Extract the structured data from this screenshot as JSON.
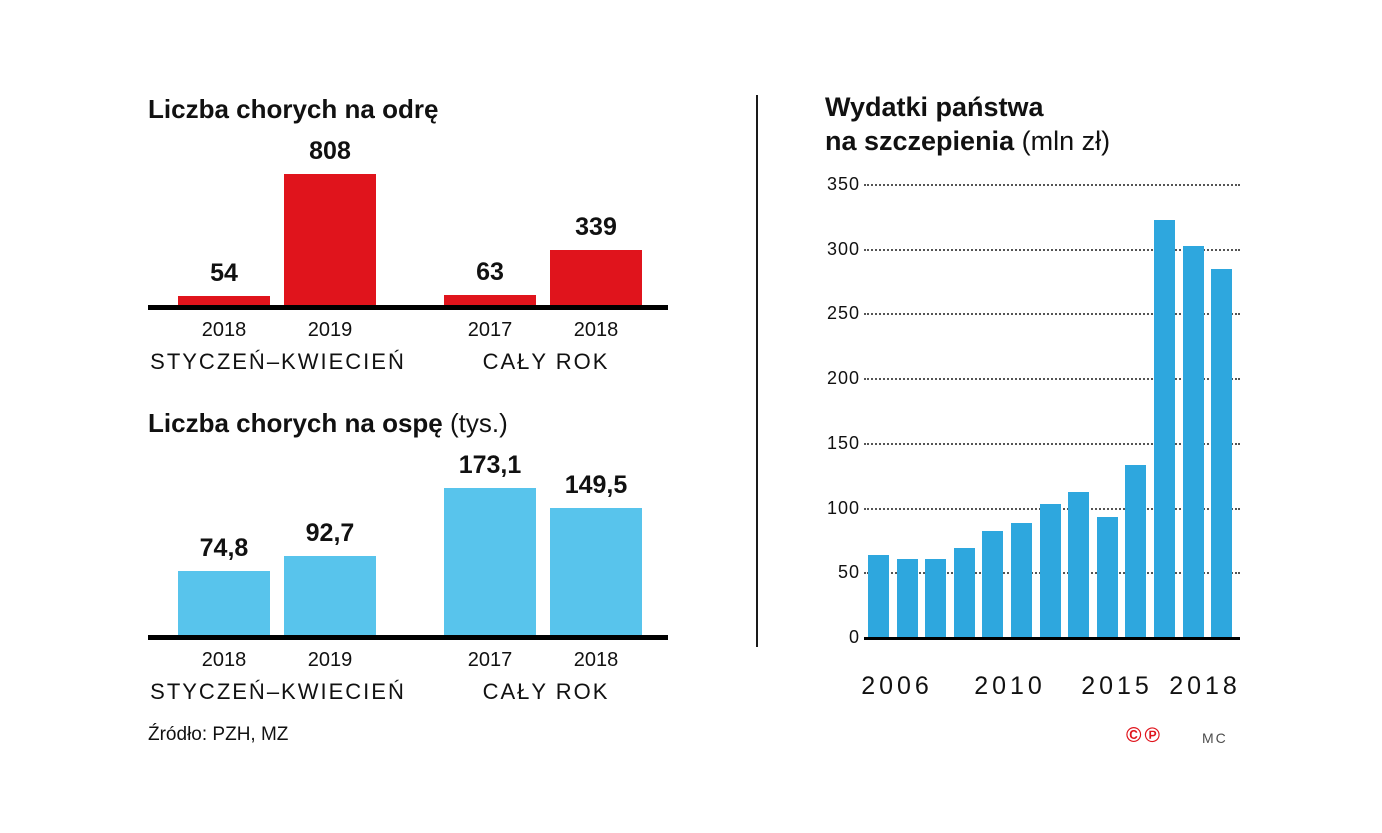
{
  "chart_data": [
    {
      "id": "measles",
      "type": "bar",
      "title": "Liczba chorych na odrę",
      "unit": "",
      "groups": [
        "STYCZEŃ–KWIECIEŃ",
        "CAŁY ROK"
      ],
      "categories": [
        "2018",
        "2019",
        "2017",
        "2018"
      ],
      "values": [
        54,
        808,
        63,
        339
      ],
      "labels": [
        "54",
        "808",
        "63",
        "339"
      ],
      "bar_color": "#e0141c",
      "value_labels_position": "above",
      "axis": "baseline-only",
      "legend": "none"
    },
    {
      "id": "chickenpox",
      "type": "bar",
      "title": "Liczba chorych na ospę",
      "unit": "(tys.)",
      "groups": [
        "STYCZEŃ–KWIECIEŃ",
        "CAŁY ROK"
      ],
      "categories": [
        "2018",
        "2019",
        "2017",
        "2018"
      ],
      "values": [
        74.8,
        92.7,
        173.1,
        149.5
      ],
      "labels": [
        "74,8",
        "92,7",
        "173,1",
        "149,5"
      ],
      "bar_color": "#58c4ec",
      "value_labels_position": "above",
      "axis": "baseline-only",
      "legend": "none"
    },
    {
      "id": "spending",
      "type": "bar",
      "title": "Wydatki państwa na szczepienia",
      "title_lines": [
        "Wydatki państwa",
        "na szczepienia"
      ],
      "unit": "(mln zł)",
      "x": [
        2006,
        2007,
        2008,
        2009,
        2010,
        2011,
        2012,
        2013,
        2014,
        2015,
        2016,
        2017,
        2018
      ],
      "values": [
        63,
        60,
        60,
        69,
        82,
        88,
        103,
        112,
        93,
        133,
        322,
        302,
        284
      ],
      "x_ticks": [
        "2006",
        "2010",
        "2015",
        "2018"
      ],
      "y_ticks": [
        350,
        300,
        250,
        200,
        150,
        100,
        50,
        0
      ],
      "ylim": [
        0,
        350
      ],
      "grid": "dotted-horizontal",
      "legend": "none",
      "bar_color": "#2ea7de"
    }
  ],
  "source": "Źródło: PZH, MZ",
  "footer": {
    "copyright_symbol": "©",
    "phono_symbol": "℗",
    "credit": "MC"
  }
}
